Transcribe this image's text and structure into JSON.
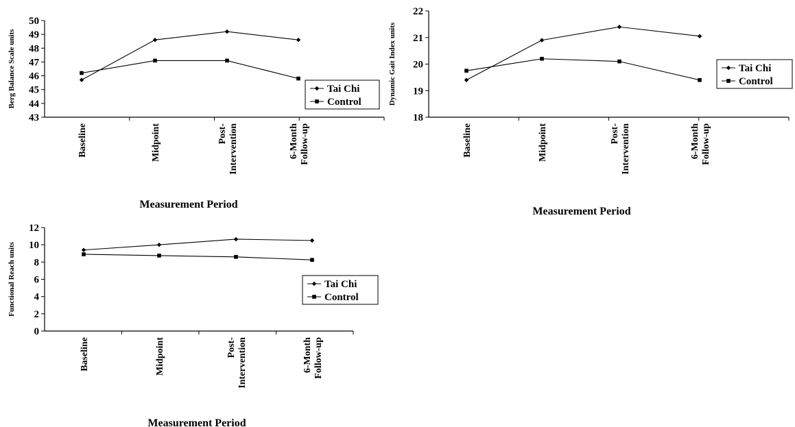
{
  "chart_data": [
    {
      "type": "line",
      "categories": [
        "Baseline",
        "Midpoint",
        "Post-\nIntervention",
        "6-Month\nFollow-up"
      ],
      "series": [
        {
          "name": "Tai Chi",
          "values": [
            45.7,
            48.6,
            49.2,
            48.6
          ],
          "marker": "diamond"
        },
        {
          "name": "Control",
          "values": [
            46.2,
            47.1,
            47.1,
            45.8
          ],
          "marker": "square"
        }
      ],
      "xlabel": "Measurement Period",
      "ylabel": "Berg Balance Scale units",
      "ylim": [
        43,
        50
      ],
      "yticks": [
        "43",
        "44",
        "45",
        "46",
        "47",
        "48",
        "49",
        "50"
      ],
      "grid": false,
      "legend": "right"
    },
    {
      "type": "line",
      "categories": [
        "Baseline",
        "Midpoint",
        "Post-\nIntervention",
        "6-Month\nFollow-up"
      ],
      "series": [
        {
          "name": "Tai Chi",
          "values": [
            19.4,
            20.9,
            21.4,
            21.05
          ],
          "marker": "diamond"
        },
        {
          "name": "Control",
          "values": [
            19.75,
            20.2,
            20.1,
            19.4
          ],
          "marker": "square"
        }
      ],
      "xlabel": "Measurement Period",
      "ylabel": "Dynamic Gait Index units",
      "ylim": [
        18,
        22
      ],
      "yticks": [
        "18",
        "19",
        "20",
        "21",
        "22"
      ],
      "grid": false,
      "legend": "right"
    },
    {
      "type": "line",
      "categories": [
        "Baseline",
        "Midpoint",
        "Post-\nIntervention",
        "6-Month\nFollow-up"
      ],
      "series": [
        {
          "name": "Tai Chi",
          "values": [
            9.4,
            10.0,
            10.65,
            10.5
          ],
          "marker": "diamond"
        },
        {
          "name": "Control",
          "values": [
            8.9,
            8.75,
            8.6,
            8.25
          ],
          "marker": "square"
        }
      ],
      "xlabel": "Measurement Period",
      "ylabel": "Functional Reach units",
      "ylim": [
        0,
        12
      ],
      "yticks": [
        "0",
        "2",
        "4",
        "6",
        "8",
        "10",
        "12"
      ],
      "grid": false,
      "legend": "right"
    }
  ]
}
